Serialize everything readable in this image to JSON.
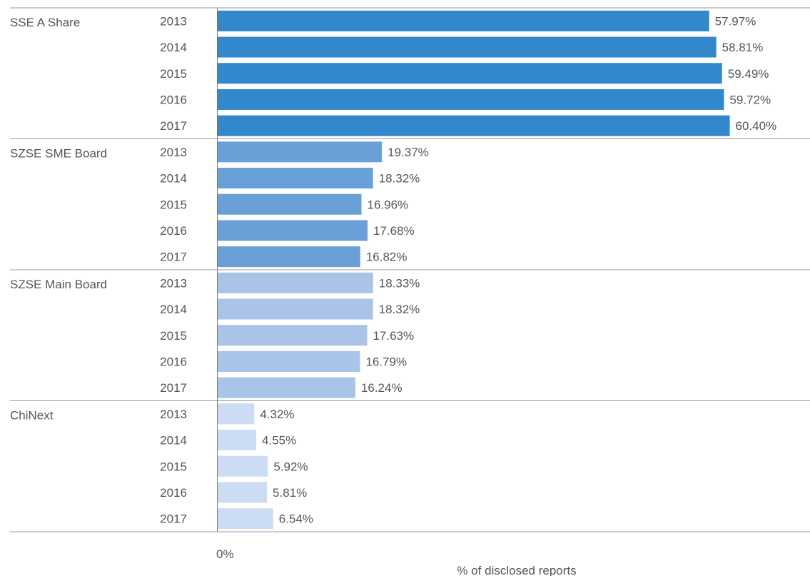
{
  "chart_data": {
    "type": "bar",
    "orientation": "horizontal",
    "title": "",
    "xlabel": "% of disclosed reports",
    "ylabel": "",
    "xlim": [
      0,
      70
    ],
    "x_tick_labels": [
      "0%"
    ],
    "grid": false,
    "legend": "none",
    "value_suffix": "%",
    "groups": [
      {
        "name": "SSE A Share",
        "color": "#3388cc",
        "bars": [
          {
            "year": "2013",
            "value": 57.97
          },
          {
            "year": "2014",
            "value": 58.81
          },
          {
            "year": "2015",
            "value": 59.49
          },
          {
            "year": "2016",
            "value": 59.72
          },
          {
            "year": "2017",
            "value": 60.4
          }
        ]
      },
      {
        "name": "SZSE SME Board",
        "color": "#6aa0d8",
        "bars": [
          {
            "year": "2013",
            "value": 19.37
          },
          {
            "year": "2014",
            "value": 18.32
          },
          {
            "year": "2015",
            "value": 16.96
          },
          {
            "year": "2016",
            "value": 17.68
          },
          {
            "year": "2017",
            "value": 16.82
          }
        ]
      },
      {
        "name": "SZSE Main Board",
        "color": "#a9c3e9",
        "bars": [
          {
            "year": "2013",
            "value": 18.33
          },
          {
            "year": "2014",
            "value": 18.32
          },
          {
            "year": "2015",
            "value": 17.63
          },
          {
            "year": "2016",
            "value": 16.79
          },
          {
            "year": "2017",
            "value": 16.24
          }
        ]
      },
      {
        "name": "ChiNext",
        "color": "#ccdcf2",
        "bars": [
          {
            "year": "2013",
            "value": 4.32
          },
          {
            "year": "2014",
            "value": 4.55
          },
          {
            "year": "2015",
            "value": 5.92
          },
          {
            "year": "2016",
            "value": 5.81
          },
          {
            "year": "2017",
            "value": 6.54
          }
        ]
      }
    ]
  }
}
